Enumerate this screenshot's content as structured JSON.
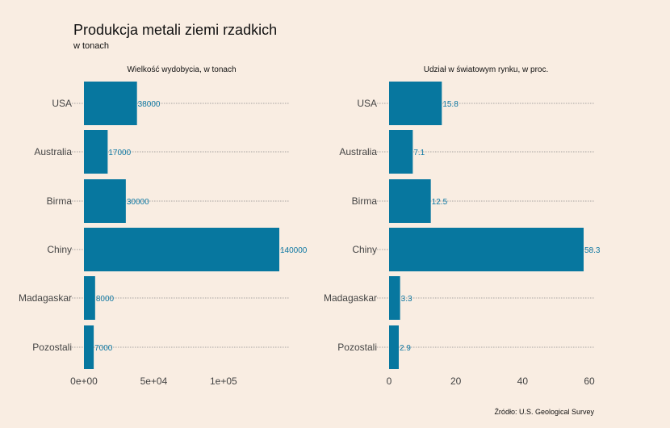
{
  "title": "Produkcja metali ziemi rzadkich",
  "subtitle": "w tonach",
  "source": "Źródło: U.S. Geological Survey",
  "colors": {
    "bar": "#07779f",
    "label": "#0e78a3",
    "background": "#f9ede2"
  },
  "chart_data": [
    {
      "type": "bar",
      "orientation": "horizontal",
      "title": "Wielkość wydobycia, w tonach",
      "categories": [
        "USA",
        "Australia",
        "Birma",
        "Chiny",
        "Madagaskar",
        "Pozostali"
      ],
      "values": [
        38000,
        17000,
        30000,
        140000,
        8000,
        7000
      ],
      "value_labels": [
        "38000",
        "17000",
        "30000",
        "140000",
        "8000",
        "7000"
      ],
      "xlim": [
        0,
        145000
      ],
      "ticks": [
        0,
        50000,
        100000
      ],
      "tick_labels": [
        "0e+00",
        "5e+04",
        "1e+05"
      ],
      "grid": "dotted horizontal"
    },
    {
      "type": "bar",
      "orientation": "horizontal",
      "title": "Udział w światowym rynku, w proc.",
      "categories": [
        "USA",
        "Australia",
        "Birma",
        "Chiny",
        "Madagaskar",
        "Pozostali"
      ],
      "values": [
        15.8,
        7.1,
        12.5,
        58.3,
        3.3,
        2.9
      ],
      "value_labels": [
        "15.8",
        "7.1",
        "12.5",
        "58.3",
        "3.3",
        "2.9"
      ],
      "xlim": [
        0,
        60
      ],
      "ticks": [
        0,
        20,
        40,
        60
      ],
      "tick_labels": [
        "0",
        "20",
        "40",
        "60"
      ],
      "grid": "dotted horizontal"
    }
  ]
}
